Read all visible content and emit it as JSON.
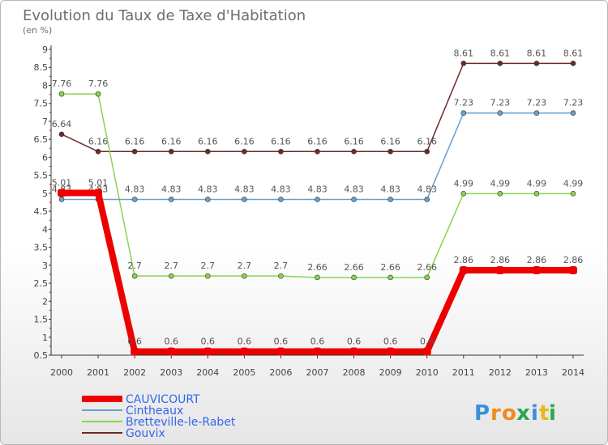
{
  "chart_data": {
    "type": "line",
    "title": "Evolution du Taux de Taxe d'Habitation",
    "subtitle": "(en %)",
    "x": [
      "2000",
      "2001",
      "2002",
      "2003",
      "2004",
      "2005",
      "2006",
      "2007",
      "2008",
      "2009",
      "2010",
      "2011",
      "2012",
      "2013",
      "2014"
    ],
    "ylim": [
      0.5,
      9
    ],
    "yticks": [
      0.5,
      1,
      1.5,
      2,
      2.5,
      3,
      3.5,
      4,
      4.5,
      5,
      5.5,
      6,
      6.5,
      7,
      7.5,
      8,
      8.5,
      9
    ],
    "ytick_labels": [
      "0.5",
      "1",
      "1.5",
      "2",
      "2.5",
      "3",
      "3.5",
      "4",
      "4.5",
      "5",
      "5.5",
      "6",
      "6.5",
      "7",
      "7.5",
      "8",
      "8.5",
      "9"
    ],
    "grid": false,
    "legend_position": "bottom-left",
    "series": [
      {
        "name": "Gouvix",
        "color": "#6e2a2a",
        "width": 1.5,
        "values": [
          6.64,
          6.16,
          6.16,
          6.16,
          6.16,
          6.16,
          6.16,
          6.16,
          6.16,
          6.16,
          6.16,
          8.61,
          8.61,
          8.61,
          8.61
        ],
        "labels": [
          "6.64",
          "6.16",
          "6.16",
          "6.16",
          "6.16",
          "6.16",
          "6.16",
          "6.16",
          "6.16",
          "6.16",
          "6.16",
          "8.61",
          "8.61",
          "8.61",
          "8.61"
        ]
      },
      {
        "name": "Bretteville-le-Rabet",
        "color": "#88d44c",
        "width": 1.5,
        "values": [
          7.76,
          7.76,
          2.7,
          2.7,
          2.7,
          2.7,
          2.7,
          2.66,
          2.66,
          2.66,
          2.66,
          4.99,
          4.99,
          4.99,
          4.99
        ],
        "labels": [
          "7.76",
          "7.76",
          "2.7",
          "2.7",
          "2.7",
          "2.7",
          "2.7",
          "2.66",
          "2.66",
          "2.66",
          "2.66",
          "4.99",
          "4.99",
          "4.99",
          "4.99"
        ]
      },
      {
        "name": "Cintheaux",
        "color": "#6a9fcc",
        "width": 1.5,
        "values": [
          4.83,
          4.83,
          4.83,
          4.83,
          4.83,
          4.83,
          4.83,
          4.83,
          4.83,
          4.83,
          4.83,
          7.23,
          7.23,
          7.23,
          7.23
        ],
        "labels": [
          "4.83",
          "4.83",
          "4.83",
          "4.83",
          "4.83",
          "4.83",
          "4.83",
          "4.83",
          "4.83",
          "4.83",
          "4.83",
          "7.23",
          "7.23",
          "7.23",
          "7.23"
        ]
      },
      {
        "name": "CAUVICOURT",
        "color": "#ee0000",
        "width": 8,
        "values": [
          5.01,
          5.01,
          0.6,
          0.6,
          0.6,
          0.6,
          0.6,
          0.6,
          0.6,
          0.6,
          0.6,
          2.86,
          2.86,
          2.86,
          2.86
        ],
        "labels": [
          "5.01",
          "5.01",
          "0.6",
          "0.6",
          "0.6",
          "0.6",
          "0.6",
          "0.6",
          "0.6",
          "0.6",
          "0.6",
          "2.86",
          "2.86",
          "2.86",
          "2.86"
        ]
      }
    ],
    "legend": [
      "CAUVICOURT",
      "Cintheaux",
      "Bretteville-le-Rabet",
      "Gouvix"
    ]
  },
  "logo": {
    "text": "Proxiti",
    "letters": [
      "P",
      "r",
      "o",
      "x",
      "i",
      "t",
      "i"
    ],
    "colors": [
      "#3a8fd8",
      "#f08a1c",
      "#f08a1c",
      "#2aa84a",
      "#3a8fd8",
      "#e8b81c",
      "#2aa84a"
    ]
  }
}
